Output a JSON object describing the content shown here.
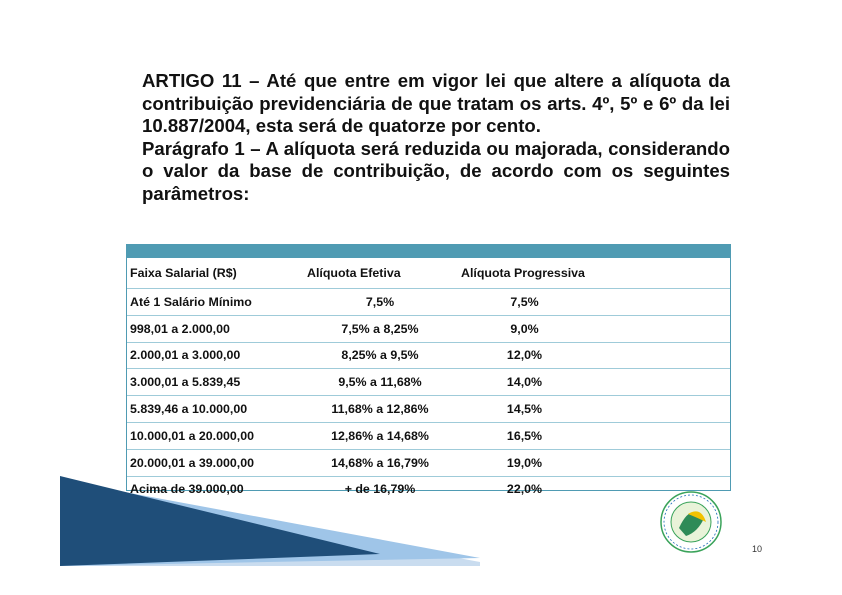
{
  "heading": {
    "line1": "ARTIGO 11 – Até que entre em vigor lei que altere a alíquota da contribuição previdenciária de que tratam os arts. 4º, 5º e 6º da lei 10.887/2004, esta será de quatorze por cento.",
    "line2": "Parágrafo 1 – A alíquota será reduzida ou majorada, considerando o valor da base de contribuição, de acordo com os seguintes parâmetros:"
  },
  "table": {
    "headers": [
      "Faixa Salarial (R$)",
      "Alíquota Efetiva",
      "Alíquota Progressiva"
    ],
    "rows": [
      [
        "Até 1 Salário Mínimo",
        "7,5%",
        "7,5%"
      ],
      [
        "998,01 a 2.000,00",
        "7,5% a 8,25%",
        "9,0%"
      ],
      [
        "2.000,01 a 3.000,00",
        "8,25% a 9,5%",
        "12,0%"
      ],
      [
        "3.000,01 a 5.839,45",
        "9,5% a 11,68%",
        "14,0%"
      ],
      [
        "5.839,46 a 10.000,00",
        "11,68% a 12,86%",
        "14,5%"
      ],
      [
        "10.000,01 a 20.000,00",
        "12,86% a 14,68%",
        "16,5%"
      ],
      [
        "20.000,01 a 39.000,00",
        "14,68% a 16,79%",
        "19,0%"
      ],
      [
        "Acima de 39.000,00",
        "+ de 16,79%",
        "22,0%"
      ]
    ]
  },
  "page_number": "10",
  "colors": {
    "table_bar": "#4f9bb3",
    "row_border": "#9fcbd9",
    "deco_dark": "#1f4e79",
    "deco_light": "#9fc5e8"
  },
  "logo": {
    "icon": "union-seal-icon",
    "text": "SINDICATO UNIFICADO PARA O"
  }
}
